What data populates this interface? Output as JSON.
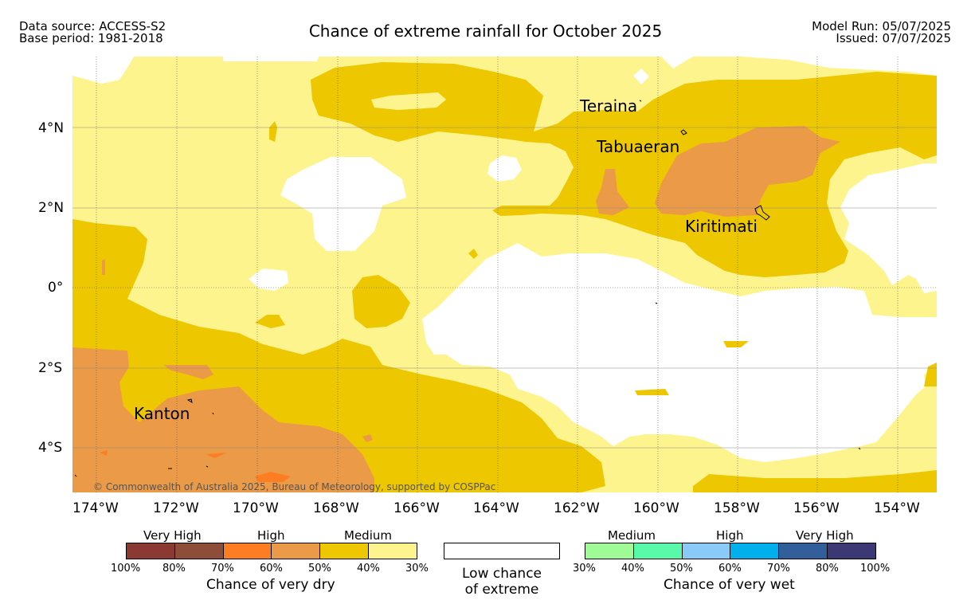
{
  "header": {
    "data_source": "Data source: ACCESS-S2",
    "base_period": "Base period: 1981-2018",
    "title": "Chance of extreme rainfall for October 2025",
    "model_run": "Model Run: 05/07/2025",
    "issued": "Issued: 07/07/2025"
  },
  "map": {
    "lon_labels": [
      "174°W",
      "172°W",
      "170°W",
      "168°W",
      "166°W",
      "164°W",
      "162°W",
      "160°W",
      "158°W",
      "156°W",
      "154°W"
    ],
    "lat_labels": [
      "4°N",
      "2°N",
      "0°",
      "2°S",
      "4°S"
    ],
    "places": {
      "teraina": "Teraina",
      "tabuaeran": "Tabuaeran",
      "kiritimati": "Kiritimati",
      "kanton": "Kanton"
    },
    "copyright": "© Commonwealth of Australia 2025, Bureau of Meteorology, supported by COSPPac",
    "colors": {
      "medium_dry_light": "#fef48e",
      "medium_dry": "#edc700",
      "high_dry": "#eb9a47",
      "high_dry_strong": "#fd7e22"
    }
  },
  "legend": {
    "dry": {
      "headings": [
        "Very High",
        "High",
        "Medium"
      ],
      "colors": [
        "#8b3a33",
        "#8d4d39",
        "#fd7e22",
        "#eb9a47",
        "#edc700",
        "#fef48e"
      ],
      "ticks": [
        "100%",
        "80%",
        "70%",
        "60%",
        "50%",
        "40%",
        "30%"
      ],
      "caption": "Chance of very dry"
    },
    "low": {
      "line1": "Low chance",
      "line2": "of extreme"
    },
    "wet": {
      "headings": [
        "Medium",
        "High",
        "Very High"
      ],
      "colors": [
        "#9efb96",
        "#58f9a8",
        "#8acaf8",
        "#00b0ed",
        "#325f9a",
        "#3b3874"
      ],
      "ticks": [
        "30%",
        "40%",
        "50%",
        "60%",
        "70%",
        "80%",
        "100%"
      ],
      "caption": "Chance of very wet"
    }
  }
}
